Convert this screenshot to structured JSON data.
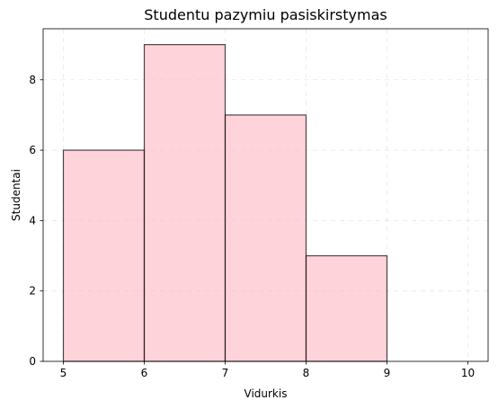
{
  "chart_data": {
    "type": "bar",
    "title": "Studentu pazymiu pasiskirstymas",
    "xlabel": "Vidurkis",
    "ylabel": "Studentai",
    "bins": [
      {
        "start": 5,
        "end": 6,
        "value": 6
      },
      {
        "start": 6,
        "end": 7,
        "value": 9
      },
      {
        "start": 7,
        "end": 8,
        "value": 7
      },
      {
        "start": 8,
        "end": 9,
        "value": 3
      },
      {
        "start": 9,
        "end": 10,
        "value": 0
      }
    ],
    "xticks": [
      "5",
      "6",
      "7",
      "8",
      "9",
      "10"
    ],
    "yticks": [
      "0",
      "2",
      "4",
      "6",
      "8"
    ],
    "xlim": [
      4.75,
      10.25
    ],
    "ylim": [
      0,
      9.45
    ],
    "grid": true,
    "bar_fill": "#ffb6c1",
    "bar_edge": "#000000"
  }
}
